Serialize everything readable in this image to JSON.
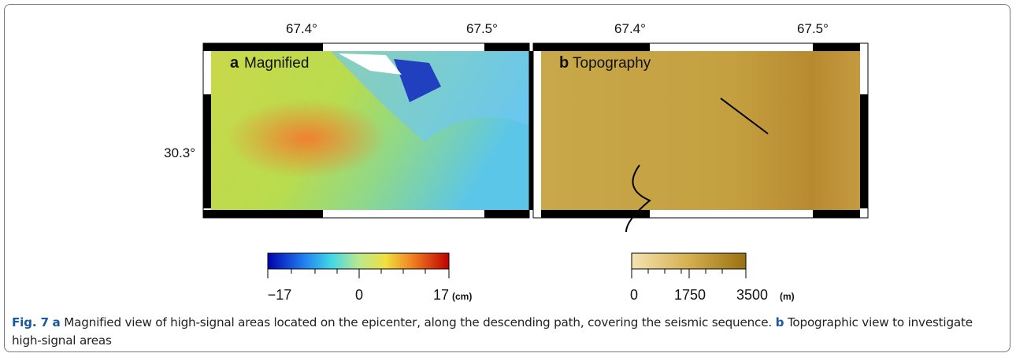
{
  "panels": [
    {
      "label": "a",
      "title": "Magnified",
      "x_ticks": [
        "67.4°",
        "67.5°"
      ],
      "y_ticks": [
        "30.3°"
      ],
      "colorbar": {
        "ticks": [
          "−17",
          "0",
          "17"
        ],
        "unit": "(cm)"
      }
    },
    {
      "label": "b",
      "title": "Topography",
      "x_ticks": [
        "67.4°",
        "67.5°"
      ],
      "colorbar": {
        "ticks": [
          "0",
          "1750",
          "3500"
        ],
        "unit": "(m)"
      }
    }
  ],
  "caption": {
    "figure": "Fig. 7",
    "parts": [
      {
        "label": "a",
        "text": "Magnified view of high-signal areas located on the epicenter, along the descending path, covering the seismic sequence."
      },
      {
        "label": "b",
        "text": "Topographic view to investigate high-signal areas"
      }
    ]
  }
}
